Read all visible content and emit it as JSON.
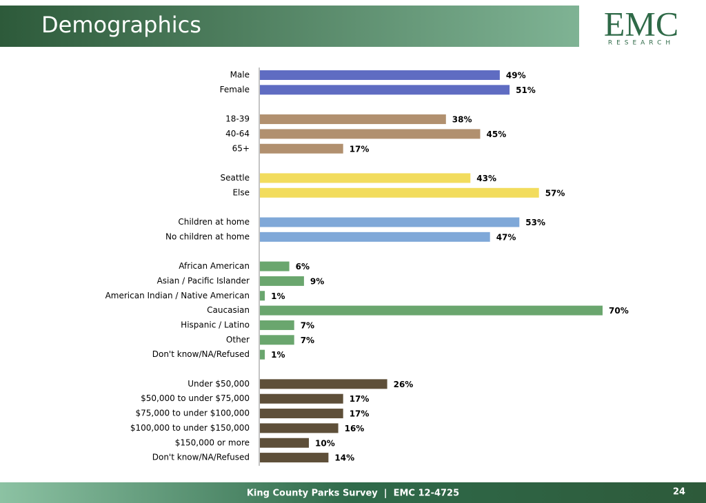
{
  "header": {
    "title": "Demographics",
    "logo": "EMC",
    "logo_sub": "RESEARCH"
  },
  "chart_data": {
    "type": "hbar",
    "categories": [
      "Male",
      "Female",
      null,
      "18-39",
      "40-64",
      "65+",
      null,
      "Seattle",
      "Else",
      null,
      "Children at home",
      "No children at home",
      null,
      "African American",
      "Asian / Pacific Islander",
      "American Indian / Native American",
      "Caucasian",
      "Hispanic / Latino",
      "Other",
      "Don't know/NA/Refused",
      null,
      "Under $50,000",
      "$50,000 to under $75,000",
      "$75,000 to under $100,000",
      "$100,000 to under $150,000",
      "$150,000 or more",
      "Don't know/NA/Refused"
    ],
    "values": [
      49,
      51,
      null,
      38,
      45,
      17,
      null,
      43,
      57,
      null,
      53,
      47,
      null,
      6,
      9,
      1,
      70,
      7,
      7,
      1,
      null,
      26,
      17,
      17,
      16,
      10,
      14
    ],
    "value_labels": [
      "49%",
      "51%",
      null,
      "38%",
      "45%",
      "17%",
      null,
      "43%",
      "57%",
      null,
      "53%",
      "47%",
      null,
      "6%",
      "9%",
      "1%",
      "70%",
      "7%",
      "7%",
      "1%",
      null,
      "26%",
      "17%",
      "17%",
      "16%",
      "10%",
      "14%"
    ],
    "colors": [
      "#5f6cc2",
      "#5f6cc2",
      null,
      "#b1906f",
      "#b1906f",
      "#b1906f",
      null,
      "#f2dc5d",
      "#f2dc5d",
      null,
      "#7fa8d8",
      "#7fa8d8",
      null,
      "#6aa66e",
      "#6aa66e",
      "#6aa66e",
      "#6aa66e",
      "#6aa66e",
      "#6aa66e",
      "#6aa66e",
      null,
      "#5e4f39",
      "#5e4f39",
      "#5e4f39",
      "#5e4f39",
      "#5e4f39",
      "#5e4f39"
    ]
  },
  "footer": {
    "text": "King County Parks Survey  |  EMC 12-4725",
    "page": "24"
  }
}
